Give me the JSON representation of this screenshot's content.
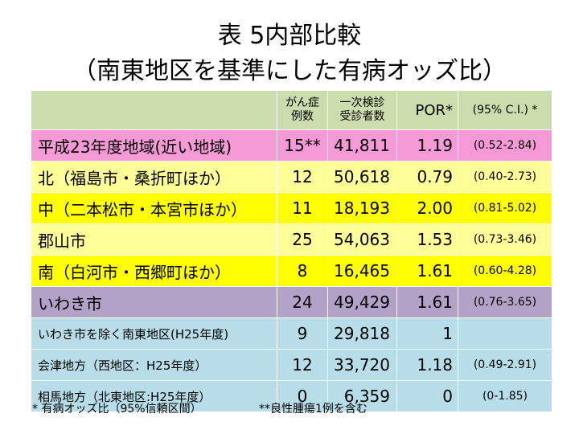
{
  "title_line1": "表 5内部比較",
  "title_line2": "（南東地区を基準にした有病オッズ比）",
  "header": {
    "cases_line1": "がん症",
    "cases_line2": "例数",
    "exam_line1": "一次検診",
    "exam_line2": "受診者数",
    "por": "POR*",
    "ci": "(95% C.I.) *"
  },
  "rows": [
    {
      "name": "平成23年度地域(近い地域)",
      "cases": "15**",
      "examinees": "41,811",
      "por": "1.19",
      "ci": "(0.52-2.84)",
      "color": "#f59ad6"
    },
    {
      "name": "北（福島市・桑折町ほか）",
      "cases": "12",
      "examinees": "50,618",
      "por": "0.79",
      "ci": "(0.40-2.73)",
      "color": "#ffff9a"
    },
    {
      "name": "中（二本松市・本宮市ほか）",
      "cases": "11",
      "examinees": "18,193",
      "por": "2.00",
      "ci": "(0.81-5.02)",
      "color": "#ffff00"
    },
    {
      "name": "郡山市",
      "cases": "25",
      "examinees": "54,063",
      "por": "1.53",
      "ci": "(0.73-3.46)",
      "color": "#ffff9a"
    },
    {
      "name": "南（白河市・西郷町ほか）",
      "cases": "8",
      "examinees": "16,465",
      "por": "1.61",
      "ci": "(0.60-4.28)",
      "color": "#ffff00"
    },
    {
      "name": "いわき市",
      "cases": "24",
      "examinees": "49,429",
      "por": "1.61",
      "ci": "(0.76-3.65)",
      "color": "#b3a2c7"
    },
    {
      "name": "いわき市を除く南東地区(H25年度)",
      "cases": "9",
      "examinees": "29,818",
      "por": "1",
      "ci": "",
      "color": "#b7dde8"
    },
    {
      "name": "会津地方（西地区：H25年度）",
      "cases": "12",
      "examinees": "33,720",
      "por": "1.18",
      "ci": "(0.49-2.91)",
      "color": "#b7dde8"
    },
    {
      "name": "相馬地方（北東地区:H25年度）",
      "cases": "0",
      "examinees": "6,359",
      "por": "0",
      "ci": "(0-1.85)",
      "color": "#b7dde8"
    }
  ],
  "footnote1": "* 有病オッズ比（95%信頼区間）",
  "footnote2": "**良性腫瘍1例を含む"
}
